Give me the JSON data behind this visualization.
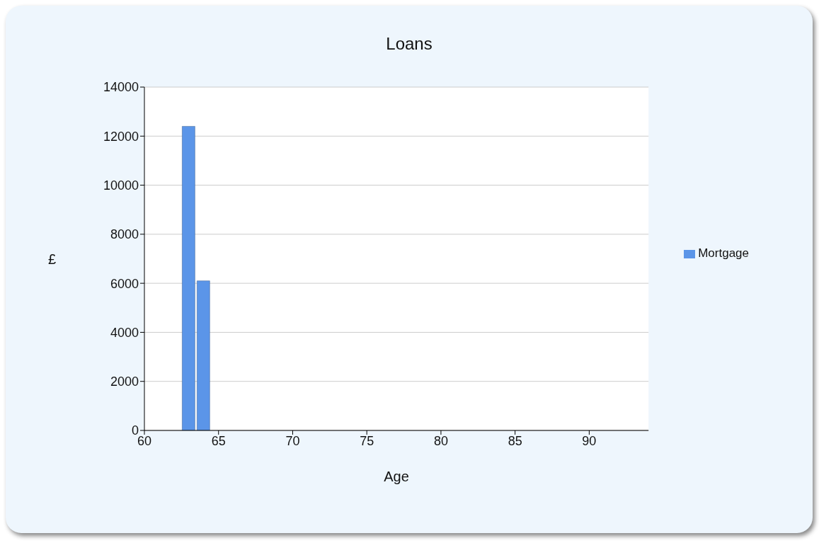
{
  "chart_data": {
    "type": "bar",
    "title": "Loans",
    "xlabel": "Age",
    "ylabel": "£",
    "x": [
      63,
      64
    ],
    "series": [
      {
        "name": "Mortgage",
        "color": "#5b95e8",
        "values": [
          12400,
          6100
        ]
      }
    ],
    "xlim": [
      60,
      94
    ],
    "xticks": [
      60,
      65,
      70,
      75,
      80,
      85,
      90
    ],
    "ylim": [
      0,
      14000
    ],
    "yticks": [
      0,
      2000,
      4000,
      6000,
      8000,
      10000,
      12000,
      14000
    ],
    "grid": "y",
    "legend": "right"
  }
}
